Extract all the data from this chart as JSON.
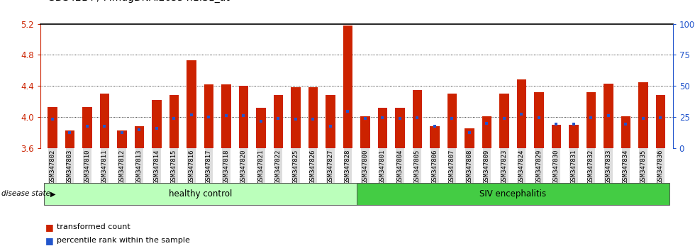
{
  "samples": [
    "GSM347802",
    "GSM347803",
    "GSM347810",
    "GSM347811",
    "GSM347812",
    "GSM347813",
    "GSM347814",
    "GSM347815",
    "GSM347816",
    "GSM347817",
    "GSM347818",
    "GSM347820",
    "GSM347821",
    "GSM347822",
    "GSM347825",
    "GSM347826",
    "GSM347827",
    "GSM347828",
    "GSM347800",
    "GSM347801",
    "GSM347804",
    "GSM347805",
    "GSM347806",
    "GSM347807",
    "GSM347808",
    "GSM347809",
    "GSM347823",
    "GSM347824",
    "GSM347829",
    "GSM347830",
    "GSM347831",
    "GSM347832",
    "GSM347833",
    "GSM347834",
    "GSM347835",
    "GSM347836"
  ],
  "red_values": [
    4.13,
    3.83,
    4.13,
    4.3,
    3.83,
    3.88,
    4.22,
    4.28,
    4.73,
    4.42,
    4.42,
    4.4,
    4.12,
    4.28,
    4.38,
    4.38,
    4.28,
    5.18,
    4.01,
    4.12,
    4.12,
    4.35,
    3.88,
    4.3,
    3.85,
    4.01,
    4.3,
    4.48,
    4.32,
    3.9,
    3.9,
    4.32,
    4.43,
    4.01,
    4.45,
    4.28
  ],
  "blue_values": [
    3.97,
    3.8,
    3.88,
    3.88,
    3.8,
    3.84,
    3.85,
    3.98,
    4.03,
    4.0,
    4.02,
    4.02,
    3.95,
    3.98,
    3.97,
    3.97,
    3.88,
    4.07,
    3.98,
    3.99,
    3.98,
    3.99,
    3.88,
    3.98,
    3.8,
    3.92,
    3.98,
    4.04,
    3.99,
    3.91,
    3.91,
    3.99,
    4.02,
    3.91,
    3.98,
    3.99
  ],
  "group1_count": 18,
  "group2_count": 18,
  "group1_label": "healthy control",
  "group2_label": "SIV encephalitis",
  "disease_state_label": "disease state",
  "legend_red": "transformed count",
  "legend_blue": "percentile rank within the sample",
  "y_min": 3.6,
  "y_max": 5.2,
  "y_ticks_left": [
    3.6,
    4.0,
    4.4,
    4.8,
    5.2
  ],
  "y_ticks_right": [
    0,
    25,
    50,
    75,
    100
  ],
  "bar_color": "#cc2200",
  "blue_color": "#2255cc",
  "group1_bg": "#bbffbb",
  "group2_bg": "#44cc44",
  "tick_bg": "#dddddd",
  "title_fontsize": 10,
  "tick_fontsize": 6.5,
  "bar_width": 0.55
}
